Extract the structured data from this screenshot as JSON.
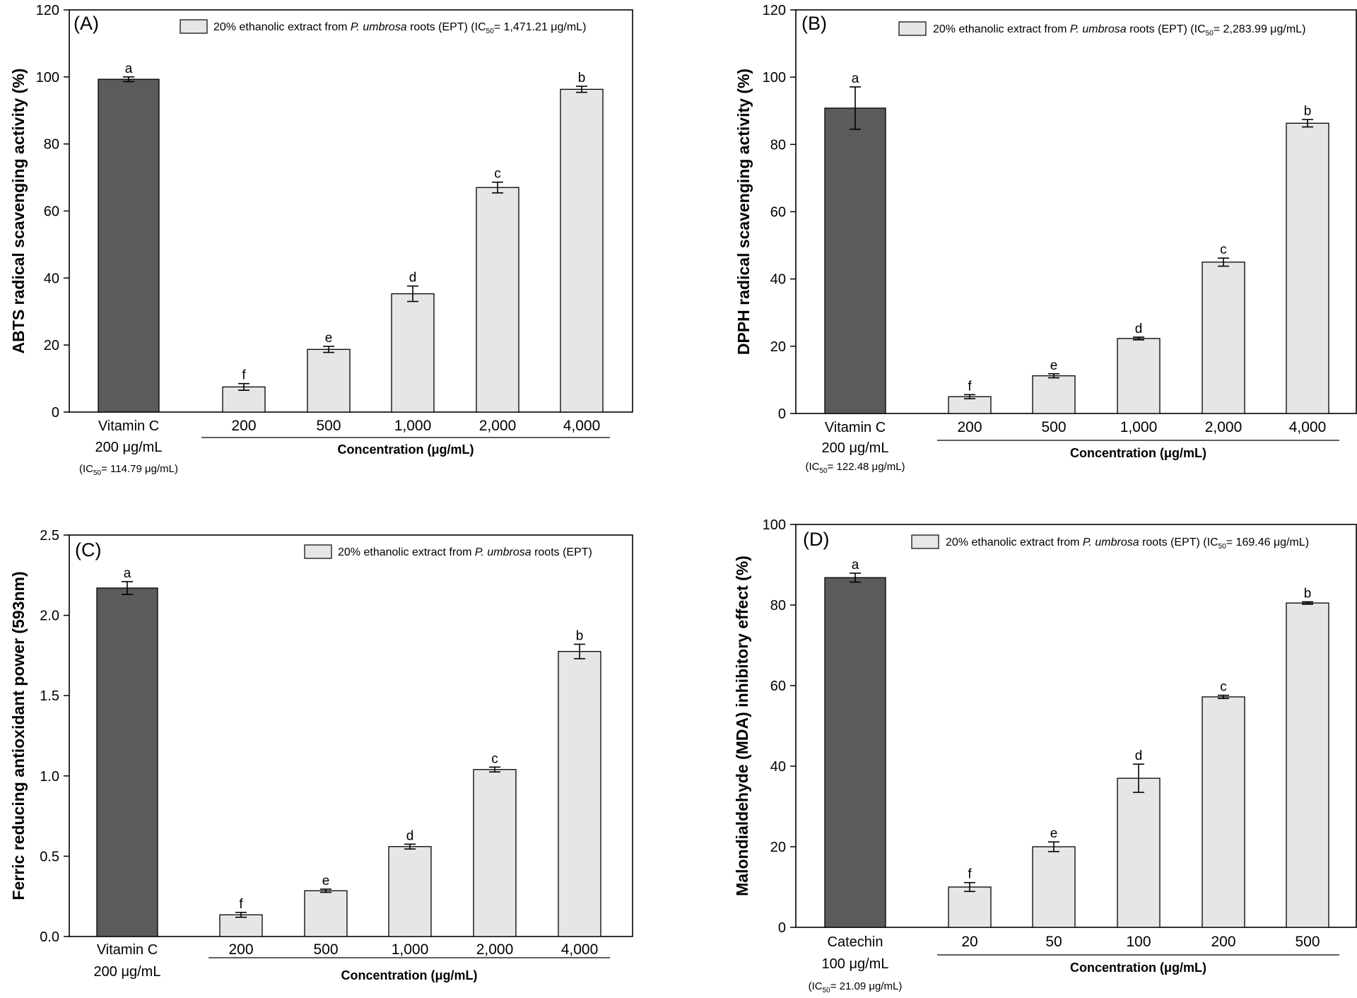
{
  "chart_data": [
    {
      "type": "bar",
      "panel_label": "(A)",
      "ylabel": "ABTS radical scavenging activity (%)",
      "xlabel": "Concentration  (μg/mL)",
      "ylim": [
        0,
        120
      ],
      "yticks": [
        "0",
        "20",
        "40",
        "60",
        "80",
        "100",
        "120"
      ],
      "legend": {
        "prefix": "20% ethanolic extract from ",
        "species": "P. umbrosa",
        "suffix": " roots (EPT) (IC",
        "sub": "50",
        "ic_value": "= 1,471.21 μg/mL)"
      },
      "control": {
        "name": "Vitamin C",
        "dose": "200 μg/mL",
        "ic_prefix": "(IC",
        "ic_sub": "50",
        "ic_value": "= 114.79 μg/mL)",
        "value": 99.3,
        "error": 0.7,
        "letter": "a",
        "color": "#5b5b5b"
      },
      "categories": [
        "200",
        "500",
        "1,000",
        "2,000",
        "4,000"
      ],
      "values": [
        7.5,
        18.7,
        35.3,
        67.0,
        96.3
      ],
      "errors": [
        1.0,
        0.9,
        2.3,
        1.6,
        0.9
      ],
      "letters": [
        "f",
        "e",
        "d",
        "c",
        "b"
      ],
      "bar_color": "#e6e6e6"
    },
    {
      "type": "bar",
      "panel_label": "(B)",
      "ylabel": "DPPH radical scavenging activity (%)",
      "xlabel": "Concentration (μg/mL)",
      "ylim": [
        0,
        120
      ],
      "yticks": [
        "0",
        "20",
        "40",
        "60",
        "80",
        "100",
        "120"
      ],
      "legend": {
        "prefix": "20% ethanolic extract from ",
        "species": "P. umbrosa",
        "suffix": " roots (EPT) (IC",
        "sub": "50",
        "ic_value": "= 2,283.99 μg/mL)"
      },
      "control": {
        "name": "Vitamin C",
        "dose": "200 μg/mL",
        "ic_prefix": "(IC",
        "ic_sub": "50",
        "ic_value": "= 122.48 μg/mL)",
        "value": 90.8,
        "error": 6.3,
        "letter": "a",
        "color": "#5b5b5b"
      },
      "categories": [
        "200",
        "500",
        "1,000",
        "2,000",
        "4,000"
      ],
      "values": [
        5.0,
        11.2,
        22.3,
        45.0,
        86.3
      ],
      "errors": [
        0.6,
        0.6,
        0.4,
        1.2,
        1.1
      ],
      "letters": [
        "f",
        "e",
        "d",
        "c",
        "b"
      ],
      "bar_color": "#e6e6e6"
    },
    {
      "type": "bar",
      "panel_label": "(C)",
      "ylabel": "Ferric reducing antioxidant power (593nm)",
      "xlabel": "Concentration (μg/mL)",
      "ylim": [
        0,
        2.5
      ],
      "yticks": [
        "0.0",
        "0.5",
        "1.0",
        "1.5",
        "2.0",
        "2.5"
      ],
      "legend": {
        "prefix": "20% ethanolic extract from ",
        "species": "P. umbrosa",
        "suffix": " roots (EPT)",
        "sub": "",
        "ic_value": ""
      },
      "control": {
        "name": "Vitamin C",
        "dose": "200 μg/mL",
        "ic_prefix": "",
        "ic_sub": "",
        "ic_value": "",
        "value": 2.17,
        "error": 0.04,
        "letter": "a",
        "color": "#5b5b5b"
      },
      "categories": [
        "200",
        "500",
        "1,000",
        "2,000",
        "4,000"
      ],
      "values": [
        0.135,
        0.285,
        0.56,
        1.04,
        1.775
      ],
      "errors": [
        0.015,
        0.01,
        0.015,
        0.015,
        0.045
      ],
      "letters": [
        "f",
        "e",
        "d",
        "c",
        "b"
      ],
      "bar_color": "#e6e6e6"
    },
    {
      "type": "bar",
      "panel_label": "(D)",
      "ylabel": "Malondialdehyde (MDA) inhibitory effect (%)",
      "xlabel": "Concentration (μg/mL)",
      "ylim": [
        0,
        100
      ],
      "yticks": [
        "0",
        "20",
        "40",
        "60",
        "80",
        "100"
      ],
      "legend": {
        "prefix": "20% ethanolic extract from ",
        "species": "P. umbrosa",
        "suffix": " roots (EPT)  (IC",
        "sub": "50",
        "ic_value": "= 169.46 μg/mL)"
      },
      "control": {
        "name": "Catechin",
        "dose": "100 μg/mL",
        "ic_prefix": "(IC",
        "ic_sub": "50",
        "ic_value": "= 21.09 μg/mL)",
        "value": 86.8,
        "error": 1.1,
        "letter": "a",
        "color": "#5b5b5b"
      },
      "categories": [
        "20",
        "50",
        "100",
        "200",
        "500"
      ],
      "values": [
        10.0,
        20.0,
        37.0,
        57.2,
        80.5
      ],
      "errors": [
        1.1,
        1.2,
        3.5,
        0.4,
        0.3
      ],
      "letters": [
        "f",
        "e",
        "d",
        "c",
        "b"
      ],
      "bar_color": "#e6e6e6"
    }
  ]
}
